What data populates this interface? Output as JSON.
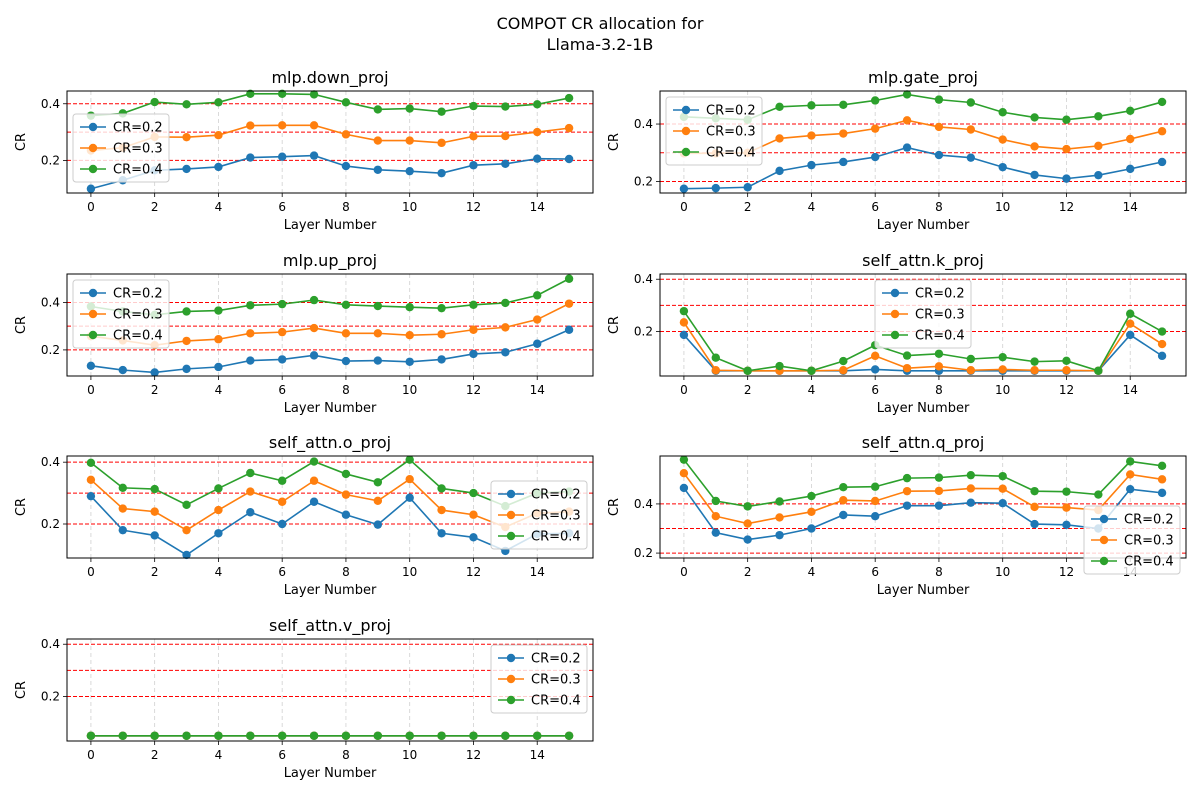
{
  "figure": {
    "title_line1": "COMPOT CR allocation for",
    "title_line2": "Llama-3.2-1B"
  },
  "colors": {
    "series": [
      "#1f77b4",
      "#ff7f0e",
      "#2ca02c"
    ],
    "hline": "#ff0000",
    "grid": "#b0b0b0"
  },
  "chart_data": [
    {
      "type": "line",
      "title": "mlp.down_proj",
      "xlabel": "Layer Number",
      "ylabel": "CR",
      "x": [
        0,
        1,
        2,
        3,
        4,
        5,
        6,
        7,
        8,
        9,
        10,
        11,
        12,
        13,
        14,
        15
      ],
      "xticks": [
        0,
        2,
        4,
        6,
        8,
        10,
        12,
        14
      ],
      "xlim": [
        -0.75,
        15.75
      ],
      "ylim": [
        0.085,
        0.445
      ],
      "yticks": [
        0.2,
        0.4
      ],
      "ytick_labels": [
        "0.2",
        "0.4"
      ],
      "hlines": [
        0.2,
        0.3,
        0.4
      ],
      "grid_x": true,
      "legend_loc": "center-left",
      "series": [
        {
          "name": "CR=0.2",
          "values": [
            0.1,
            0.13,
            0.165,
            0.17,
            0.177,
            0.21,
            0.213,
            0.217,
            0.18,
            0.167,
            0.162,
            0.155,
            0.183,
            0.188,
            0.206,
            0.205
          ]
        },
        {
          "name": "CR=0.3",
          "values": [
            0.235,
            0.245,
            0.283,
            0.282,
            0.289,
            0.323,
            0.324,
            0.324,
            0.292,
            0.27,
            0.27,
            0.262,
            0.285,
            0.286,
            0.3,
            0.314
          ]
        },
        {
          "name": "CR=0.4",
          "values": [
            0.358,
            0.366,
            0.406,
            0.398,
            0.405,
            0.435,
            0.435,
            0.433,
            0.405,
            0.38,
            0.383,
            0.372,
            0.392,
            0.39,
            0.398,
            0.42
          ]
        }
      ]
    },
    {
      "type": "line",
      "title": "mlp.gate_proj",
      "xlabel": "Layer Number",
      "ylabel": "CR",
      "x": [
        0,
        1,
        2,
        3,
        4,
        5,
        6,
        7,
        8,
        9,
        10,
        11,
        12,
        13,
        14,
        15
      ],
      "xticks": [
        0,
        2,
        4,
        6,
        8,
        10,
        12,
        14
      ],
      "xlim": [
        -0.75,
        15.75
      ],
      "ylim": [
        0.16,
        0.515
      ],
      "yticks": [
        0.2,
        0.4
      ],
      "ytick_labels": [
        "0.2",
        "0.4"
      ],
      "hlines": [
        0.2,
        0.3,
        0.4
      ],
      "grid_x": true,
      "legend_loc": "upper-left",
      "series": [
        {
          "name": "CR=0.2",
          "values": [
            0.175,
            0.177,
            0.18,
            0.237,
            0.257,
            0.268,
            0.285,
            0.318,
            0.292,
            0.283,
            0.25,
            0.223,
            0.21,
            0.222,
            0.244,
            0.268
          ]
        },
        {
          "name": "CR=0.3",
          "values": [
            0.298,
            0.298,
            0.3,
            0.35,
            0.36,
            0.367,
            0.384,
            0.413,
            0.39,
            0.381,
            0.346,
            0.322,
            0.313,
            0.324,
            0.348,
            0.375
          ]
        },
        {
          "name": "CR=0.4",
          "values": [
            0.425,
            0.42,
            0.415,
            0.46,
            0.465,
            0.467,
            0.482,
            0.503,
            0.485,
            0.475,
            0.441,
            0.423,
            0.415,
            0.427,
            0.446,
            0.477
          ]
        }
      ]
    },
    {
      "type": "line",
      "title": "mlp.up_proj",
      "xlabel": "Layer Number",
      "ylabel": "CR",
      "x": [
        0,
        1,
        2,
        3,
        4,
        5,
        6,
        7,
        8,
        9,
        10,
        11,
        12,
        13,
        14,
        15
      ],
      "xticks": [
        0,
        2,
        4,
        6,
        8,
        10,
        12,
        14
      ],
      "xlim": [
        -0.75,
        15.75
      ],
      "ylim": [
        0.09,
        0.52
      ],
      "yticks": [
        0.2,
        0.4
      ],
      "ytick_labels": [
        "0.2",
        "0.4"
      ],
      "hlines": [
        0.2,
        0.3,
        0.4
      ],
      "grid_x": true,
      "legend_loc": "upper-left",
      "series": [
        {
          "name": "CR=0.2",
          "values": [
            0.133,
            0.115,
            0.105,
            0.12,
            0.128,
            0.155,
            0.16,
            0.177,
            0.153,
            0.155,
            0.15,
            0.16,
            0.183,
            0.19,
            0.226,
            0.285
          ]
        },
        {
          "name": "CR=0.3",
          "values": [
            0.258,
            0.24,
            0.22,
            0.238,
            0.245,
            0.27,
            0.275,
            0.292,
            0.27,
            0.27,
            0.262,
            0.266,
            0.285,
            0.295,
            0.328,
            0.395
          ]
        },
        {
          "name": "CR=0.4",
          "values": [
            0.383,
            0.362,
            0.348,
            0.362,
            0.366,
            0.388,
            0.393,
            0.41,
            0.39,
            0.385,
            0.38,
            0.376,
            0.39,
            0.398,
            0.43,
            0.5
          ]
        }
      ]
    },
    {
      "type": "line",
      "title": "self_attn.k_proj",
      "xlabel": "Layer Number",
      "ylabel": "CR",
      "x": [
        0,
        1,
        2,
        3,
        4,
        5,
        6,
        7,
        8,
        9,
        10,
        11,
        12,
        13,
        14,
        15
      ],
      "xticks": [
        0,
        2,
        4,
        6,
        8,
        10,
        12,
        14
      ],
      "xlim": [
        -0.75,
        15.75
      ],
      "ylim": [
        0.03,
        0.42
      ],
      "yticks": [
        0.2,
        0.4
      ],
      "ytick_labels": [
        "0.2",
        "0.4"
      ],
      "hlines": [
        0.2,
        0.3,
        0.4
      ],
      "grid_x": true,
      "legend_loc": "upper-center",
      "series": [
        {
          "name": "CR=0.2",
          "values": [
            0.187,
            0.05,
            0.05,
            0.05,
            0.05,
            0.05,
            0.055,
            0.05,
            0.05,
            0.05,
            0.05,
            0.05,
            0.05,
            0.05,
            0.187,
            0.107
          ]
        },
        {
          "name": "CR=0.3",
          "values": [
            0.235,
            0.052,
            0.05,
            0.05,
            0.05,
            0.052,
            0.107,
            0.06,
            0.067,
            0.052,
            0.055,
            0.052,
            0.052,
            0.05,
            0.23,
            0.152
          ]
        },
        {
          "name": "CR=0.4",
          "values": [
            0.278,
            0.1,
            0.05,
            0.068,
            0.05,
            0.087,
            0.148,
            0.108,
            0.115,
            0.095,
            0.102,
            0.085,
            0.088,
            0.05,
            0.268,
            0.2
          ]
        }
      ]
    },
    {
      "type": "line",
      "title": "self_attn.o_proj",
      "xlabel": "Layer Number",
      "ylabel": "CR",
      "x": [
        0,
        1,
        2,
        3,
        4,
        5,
        6,
        7,
        8,
        9,
        10,
        11,
        12,
        13,
        14,
        15
      ],
      "xticks": [
        0,
        2,
        4,
        6,
        8,
        10,
        12,
        14
      ],
      "xlim": [
        -0.75,
        15.75
      ],
      "ylim": [
        0.09,
        0.42
      ],
      "yticks": [
        0.2,
        0.4
      ],
      "ytick_labels": [
        "0.2",
        "0.4"
      ],
      "hlines": [
        0.2,
        0.3,
        0.4
      ],
      "grid_x": true,
      "legend_loc": "center-right",
      "series": [
        {
          "name": "CR=0.2",
          "values": [
            0.29,
            0.18,
            0.163,
            0.1,
            0.17,
            0.238,
            0.2,
            0.272,
            0.23,
            0.198,
            0.285,
            0.17,
            0.157,
            0.113,
            0.168,
            0.17
          ]
        },
        {
          "name": "CR=0.3",
          "values": [
            0.343,
            0.25,
            0.24,
            0.18,
            0.245,
            0.305,
            0.272,
            0.34,
            0.295,
            0.275,
            0.345,
            0.245,
            0.23,
            0.19,
            0.235,
            0.24
          ]
        },
        {
          "name": "CR=0.4",
          "values": [
            0.398,
            0.317,
            0.313,
            0.262,
            0.315,
            0.365,
            0.34,
            0.402,
            0.362,
            0.335,
            0.408,
            0.315,
            0.3,
            0.258,
            0.3,
            0.305
          ]
        }
      ]
    },
    {
      "type": "line",
      "title": "self_attn.q_proj",
      "xlabel": "Layer Number",
      "ylabel": "CR",
      "x": [
        0,
        1,
        2,
        3,
        4,
        5,
        6,
        7,
        8,
        9,
        10,
        11,
        12,
        13,
        14,
        15
      ],
      "xticks": [
        0,
        2,
        4,
        6,
        8,
        10,
        12,
        14
      ],
      "xlim": [
        -0.75,
        15.75
      ],
      "ylim": [
        0.18,
        0.595
      ],
      "yticks": [
        0.2,
        0.4
      ],
      "ytick_labels": [
        "0.2",
        "0.4"
      ],
      "hlines": [
        0.2,
        0.3,
        0.4
      ],
      "grid_x": true,
      "legend_loc": "lower-right",
      "series": [
        {
          "name": "CR=0.2",
          "values": [
            0.465,
            0.283,
            0.255,
            0.273,
            0.3,
            0.355,
            0.35,
            0.393,
            0.393,
            0.405,
            0.403,
            0.318,
            0.315,
            0.3,
            0.46,
            0.445
          ]
        },
        {
          "name": "CR=0.3",
          "values": [
            0.525,
            0.35,
            0.32,
            0.345,
            0.368,
            0.415,
            0.412,
            0.452,
            0.453,
            0.463,
            0.462,
            0.388,
            0.385,
            0.375,
            0.52,
            0.5
          ]
        },
        {
          "name": "CR=0.4",
          "values": [
            0.58,
            0.412,
            0.39,
            0.41,
            0.432,
            0.468,
            0.47,
            0.505,
            0.507,
            0.517,
            0.513,
            0.452,
            0.45,
            0.438,
            0.573,
            0.555
          ]
        }
      ]
    },
    {
      "type": "line",
      "title": "self_attn.v_proj",
      "xlabel": "Layer Number",
      "ylabel": "CR",
      "x": [
        0,
        1,
        2,
        3,
        4,
        5,
        6,
        7,
        8,
        9,
        10,
        11,
        12,
        13,
        14,
        15
      ],
      "xticks": [
        0,
        2,
        4,
        6,
        8,
        10,
        12,
        14
      ],
      "xlim": [
        -0.75,
        15.75
      ],
      "ylim": [
        0.03,
        0.42
      ],
      "yticks": [
        0.2,
        0.4
      ],
      "ytick_labels": [
        "0.2",
        "0.4"
      ],
      "hlines": [
        0.2,
        0.3,
        0.4
      ],
      "grid_x": true,
      "legend_loc": "upper-right",
      "series": [
        {
          "name": "CR=0.2",
          "values": [
            0.05,
            0.05,
            0.05,
            0.05,
            0.05,
            0.05,
            0.05,
            0.05,
            0.05,
            0.05,
            0.05,
            0.05,
            0.05,
            0.05,
            0.05,
            0.05
          ]
        },
        {
          "name": "CR=0.3",
          "values": [
            0.05,
            0.05,
            0.05,
            0.05,
            0.05,
            0.05,
            0.05,
            0.05,
            0.05,
            0.05,
            0.05,
            0.05,
            0.05,
            0.05,
            0.05,
            0.05
          ]
        },
        {
          "name": "CR=0.4",
          "values": [
            0.05,
            0.05,
            0.05,
            0.05,
            0.05,
            0.05,
            0.05,
            0.05,
            0.05,
            0.05,
            0.05,
            0.05,
            0.05,
            0.05,
            0.05,
            0.05
          ]
        }
      ]
    }
  ]
}
